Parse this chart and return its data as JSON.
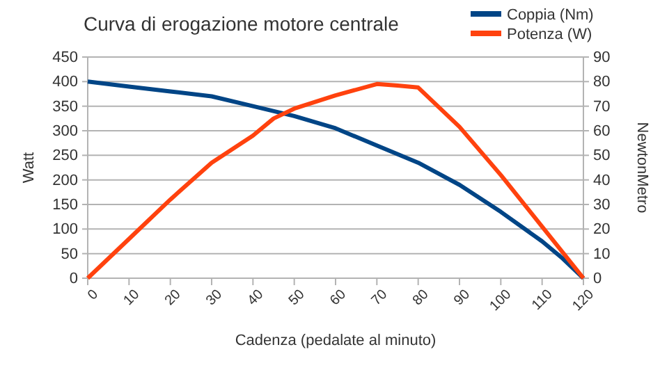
{
  "chart_data": {
    "type": "line",
    "title": "Curva di erogazione motore centrale",
    "xlabel": "Cadenza (pedalate al minuto)",
    "ylabel": "Watt",
    "y2label": "NewtonMetro",
    "series": [
      {
        "name": "Coppia (Nm)",
        "color": "#004586",
        "axis": "y2",
        "x": [
          0,
          10,
          20,
          30,
          40,
          50,
          60,
          70,
          80,
          90,
          100,
          110,
          115,
          120
        ],
        "values": [
          80,
          78,
          76,
          74,
          70,
          66,
          61,
          54,
          47,
          38,
          27,
          15,
          8,
          0
        ]
      },
      {
        "name": "Potenza (W)",
        "color": "#ff420e",
        "x": [
          0,
          10,
          20,
          30,
          40,
          45,
          50,
          60,
          70,
          75,
          80,
          90,
          100,
          110,
          120
        ],
        "values": [
          0,
          80,
          160,
          235,
          290,
          325,
          345,
          372,
          395,
          392,
          388,
          308,
          210,
          105,
          0
        ]
      }
    ],
    "xlim": [
      0,
      120
    ],
    "xticks": [
      0,
      10,
      20,
      30,
      40,
      50,
      60,
      70,
      80,
      90,
      100,
      110,
      120
    ],
    "ylim": [
      0,
      450
    ],
    "yticks": [
      0,
      50,
      100,
      150,
      200,
      250,
      300,
      350,
      400,
      450
    ],
    "y2lim": [
      0,
      90
    ],
    "y2ticks": [
      0,
      10,
      20,
      30,
      40,
      50,
      60,
      70,
      80,
      90
    ],
    "grid": "y",
    "legend": "top right",
    "marker": "none",
    "line_style": "solid"
  }
}
